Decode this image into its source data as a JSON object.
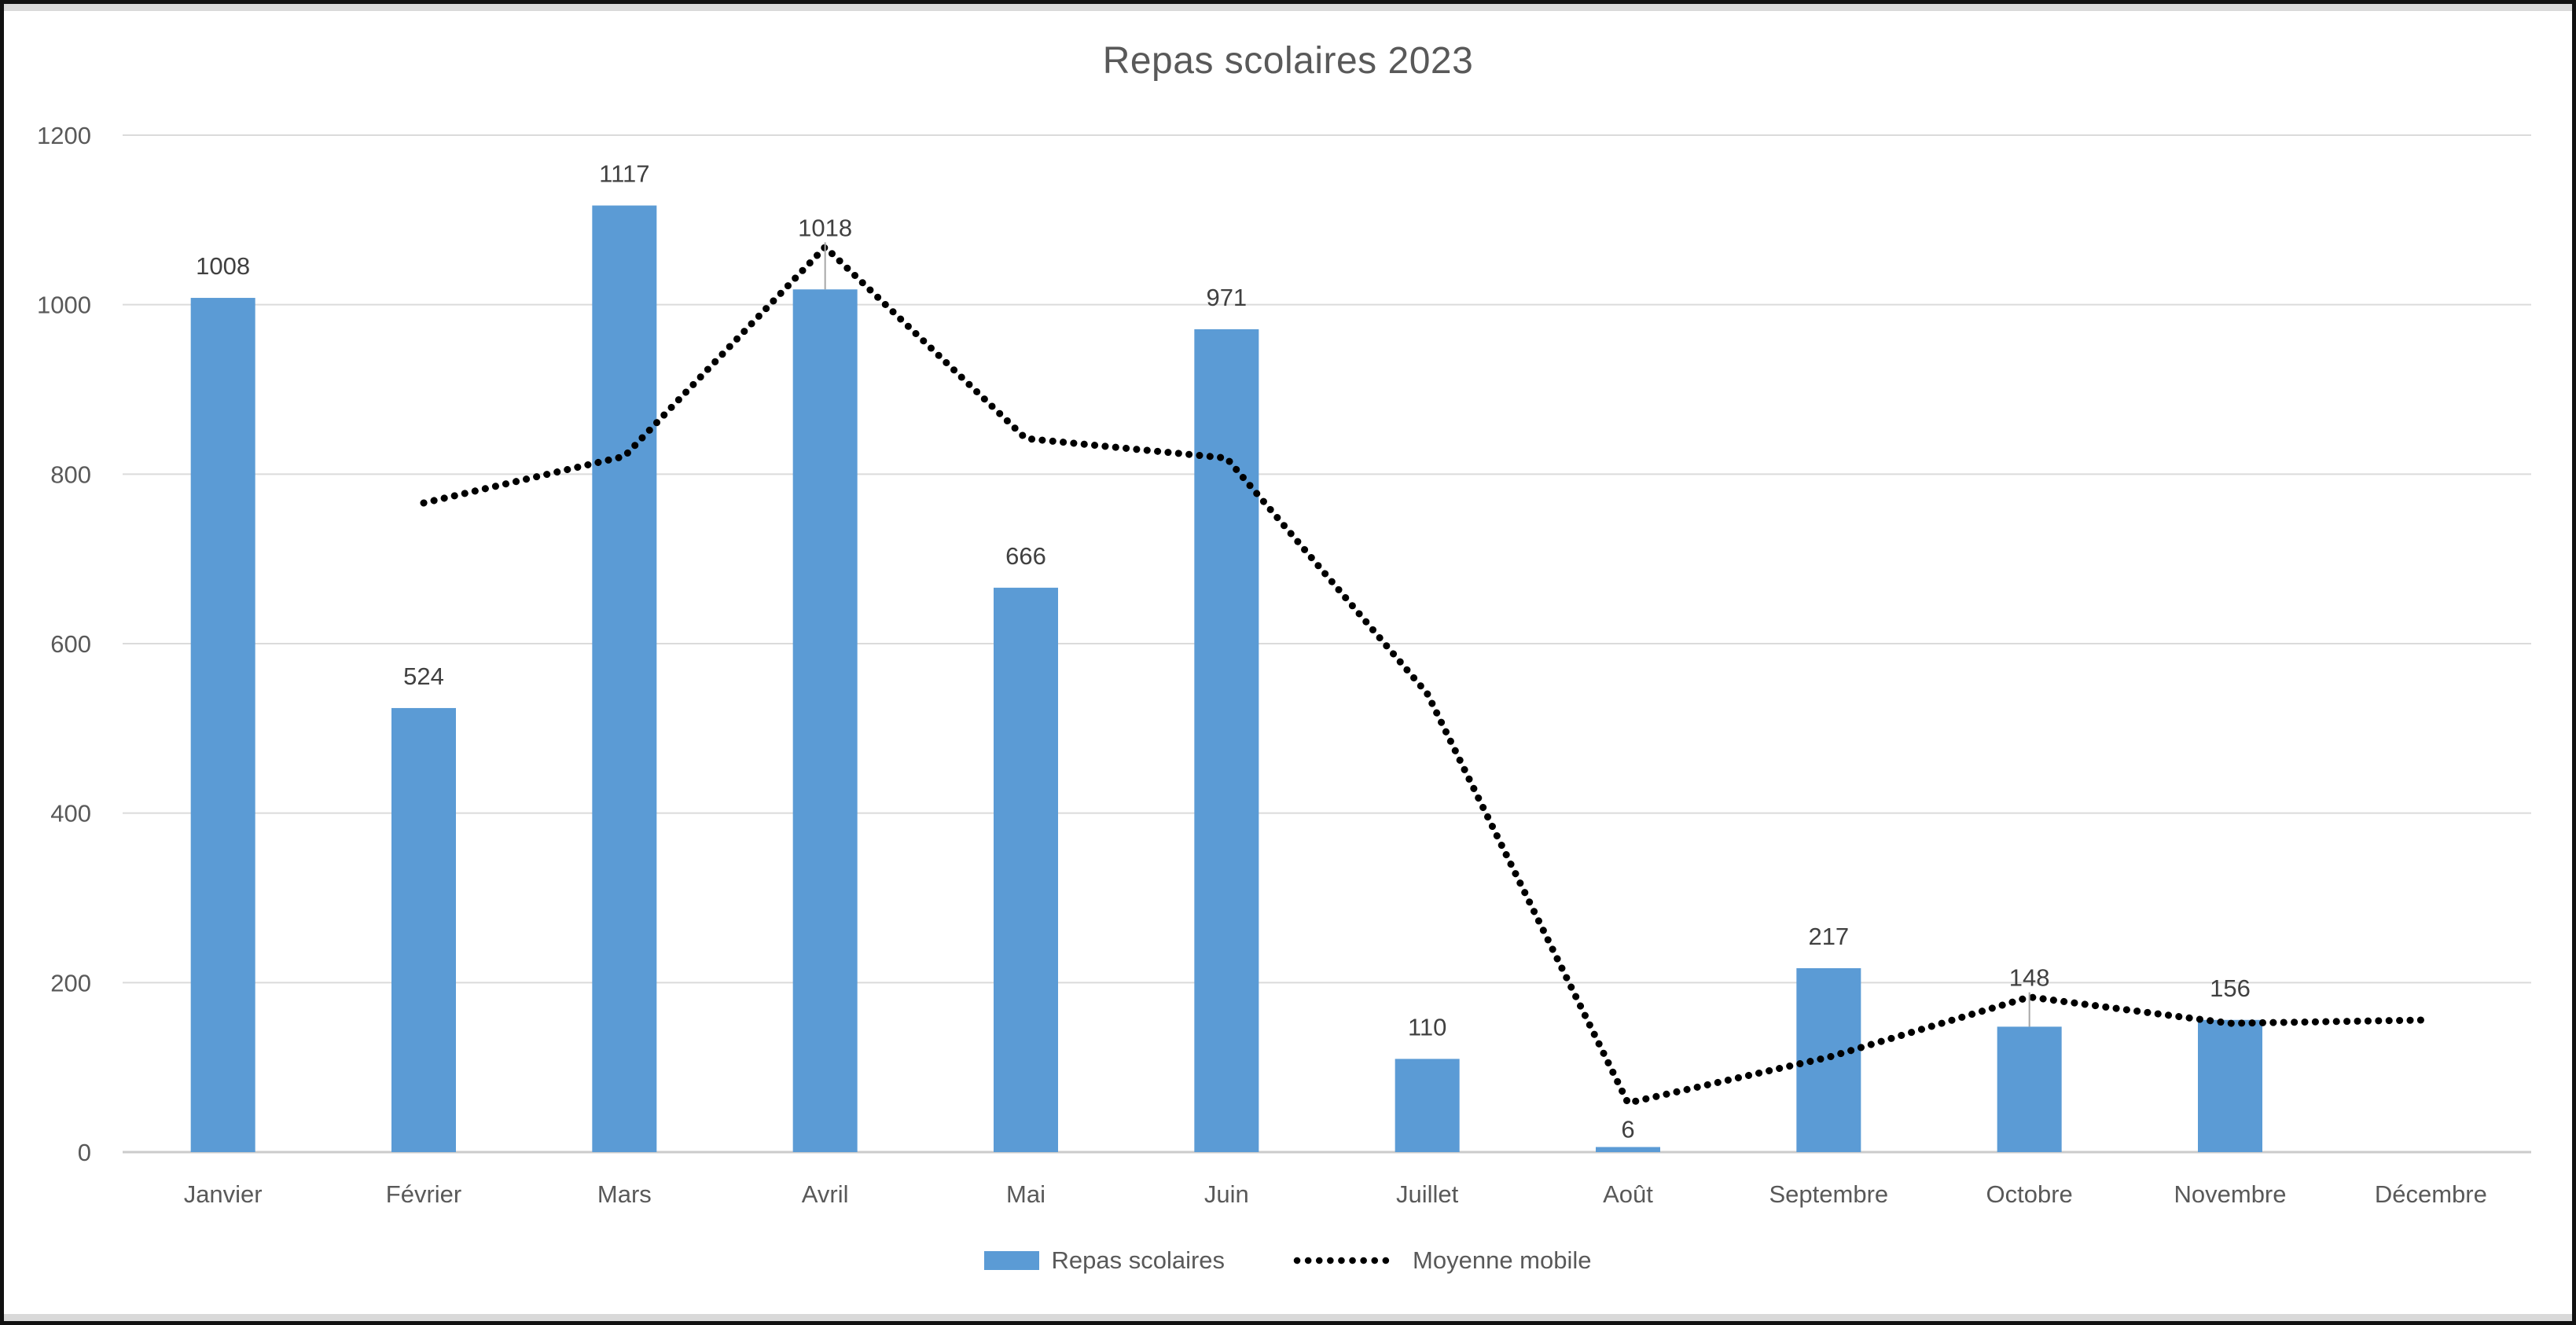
{
  "chart_data": {
    "type": "bar",
    "title": "Repas scolaires 2023",
    "categories": [
      "Janvier",
      "Février",
      "Mars",
      "Avril",
      "Mai",
      "Juin",
      "Juillet",
      "Août",
      "Septembre",
      "Octobre",
      "Novembre",
      "Décembre"
    ],
    "series": [
      {
        "name": "Repas scolaires",
        "type": "bar",
        "color": "#5B9BD5",
        "values": [
          1008,
          524,
          1117,
          1018,
          666,
          971,
          110,
          6,
          217,
          148,
          156,
          null
        ],
        "data_labels": [
          "1008",
          "524",
          "1117",
          "1018",
          "666",
          "971",
          "110",
          "6",
          "217",
          "148",
          "156",
          ""
        ]
      },
      {
        "name": "Moyenne mobile",
        "type": "line",
        "line_style": "dotted",
        "color": "#000000",
        "values": [
          null,
          766,
          821,
          1068,
          842,
          819,
          541,
          58,
          112,
          183,
          152,
          156
        ],
        "values_estimated": true
      }
    ],
    "xlabel": "",
    "ylabel": "",
    "ylim": [
      0,
      1200
    ],
    "y_ticks": [
      0,
      200,
      400,
      600,
      800,
      1000,
      1200
    ],
    "grid": "horizontal",
    "legend_position": "bottom",
    "colors": {
      "bar": "#5B9BD5",
      "line": "#000000",
      "title_text": "#595959",
      "axis_text": "#595959",
      "data_label_text": "#404040",
      "gridline": "#DBDBDB",
      "axis_line": "#CBCBCB",
      "leader_line": "#A6A6A6",
      "frame_border": "#111111",
      "margin_strip": "#D9D9D9"
    }
  }
}
